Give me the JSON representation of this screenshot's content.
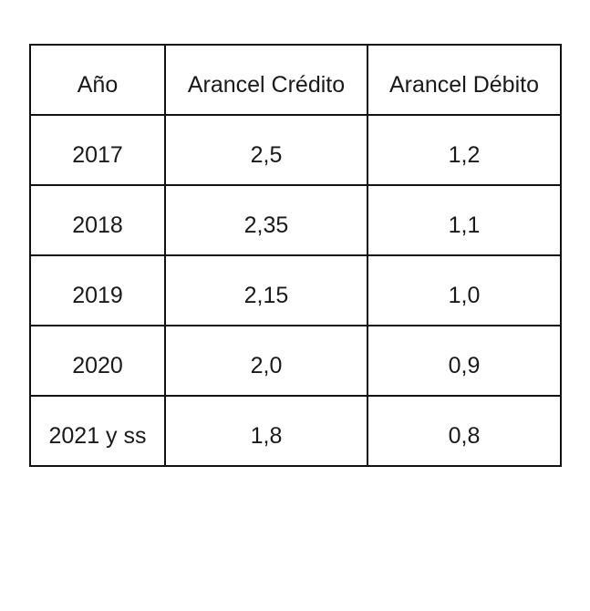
{
  "table": {
    "headers": [
      "Año",
      "Arancel Crédito",
      "Arancel Débito"
    ],
    "rows": [
      [
        "2017",
        "2,5",
        "1,2"
      ],
      [
        "2018",
        "2,35",
        "1,1"
      ],
      [
        "2019",
        "2,15",
        "1,0"
      ],
      [
        "2020",
        "2,0",
        "0,9"
      ],
      [
        "2021 y ss",
        "1,8",
        "0,8"
      ]
    ]
  },
  "colors": {
    "border": "#111111",
    "text": "#1a1a1a",
    "background": "#ffffff"
  }
}
